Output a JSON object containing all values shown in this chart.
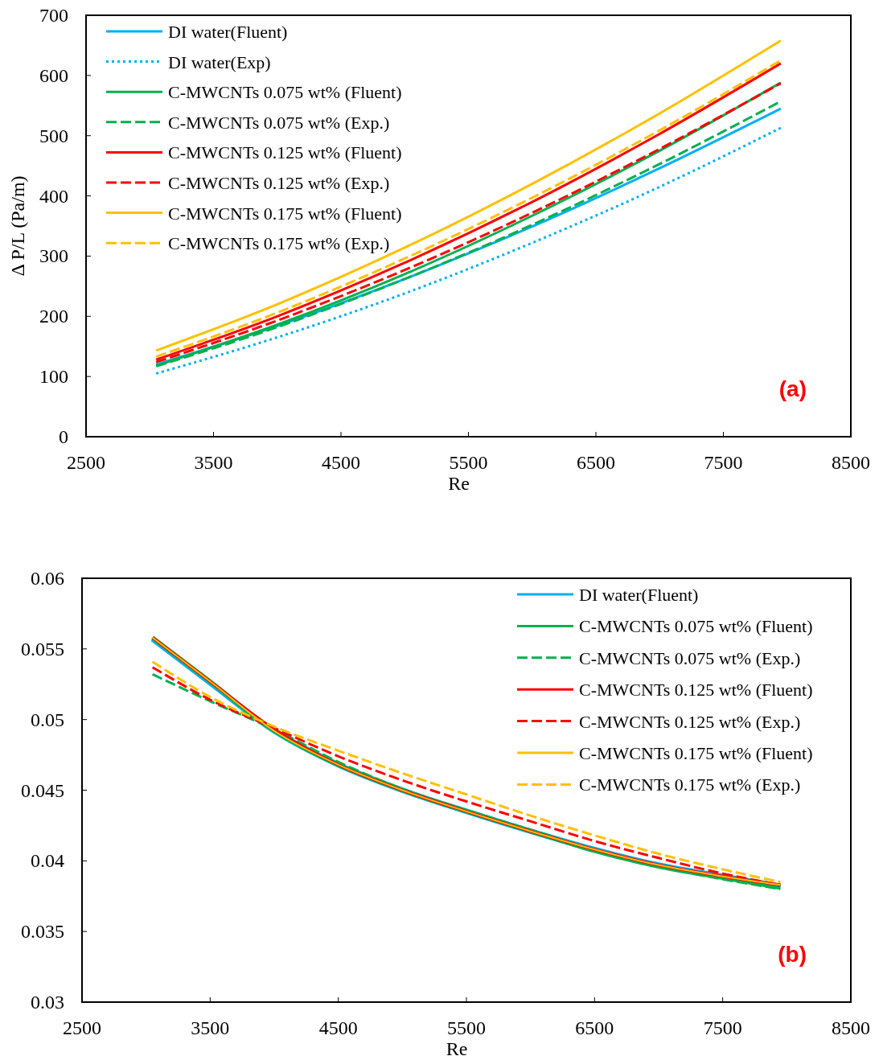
{
  "chart_data": [
    {
      "type": "line",
      "xlabel": "Re",
      "ylabel": "Δ P/L (Pa/m)",
      "annotations": [
        "(a)"
      ],
      "xlim": [
        2500,
        8500
      ],
      "xticks": [
        2500,
        3500,
        4500,
        5500,
        6500,
        7500,
        8500
      ],
      "ylim": [
        0,
        700
      ],
      "yticks": [
        0,
        100,
        200,
        300,
        400,
        500,
        600,
        700
      ],
      "grid": false,
      "legend": "top left",
      "marker": "none",
      "x": [
        3050,
        4000,
        5000,
        6000,
        7000,
        7950
      ],
      "series": [
        {
          "name": "DI water(Fluent)",
          "color": "#00b0f0",
          "line_style": "solid",
          "values": [
            120,
            184,
            262,
            349,
            446,
            545
          ]
        },
        {
          "name": "DI water(Exp)",
          "color": "#00b0f0",
          "line_style": "dotted",
          "values": [
            105,
            165,
            238,
            322,
            415,
            513
          ]
        },
        {
          "name": "C-MWCNTs 0.075 wt% (Fluent)",
          "color": "#00b050",
          "line_style": "solid",
          "values": [
            118,
            186,
            270,
            367,
            475,
            588
          ]
        },
        {
          "name": "C-MWCNTs 0.075 wt% (Exp.)",
          "color": "#00b050",
          "line_style": "dashed",
          "values": [
            117,
            182,
            262,
            352,
            453,
            557
          ]
        },
        {
          "name": "C-MWCNTs 0.125 wt% (Fluent)",
          "color": "#ff0000",
          "line_style": "solid",
          "values": [
            128,
            200,
            289,
            390,
            503,
            620
          ]
        },
        {
          "name": "C-MWCNTs 0.125 wt% (Exp.)",
          "color": "#ff0000",
          "line_style": "dashed",
          "values": [
            124,
            193,
            277,
            372,
            478,
            587
          ]
        },
        {
          "name": "C-MWCNTs 0.175 wt% (Fluent)",
          "color": "#ffc000",
          "line_style": "solid",
          "values": [
            143,
            220,
            314,
            420,
            537,
            658
          ]
        },
        {
          "name": "C-MWCNTs 0.175 wt% (Exp.)",
          "color": "#ffc000",
          "line_style": "dashed",
          "values": [
            133,
            206,
            296,
            397,
            509,
            625
          ]
        }
      ]
    },
    {
      "type": "line",
      "xlabel": "Re",
      "annotations": [
        "(b)"
      ],
      "xlim": [
        2500,
        8500
      ],
      "xticks": [
        2500,
        3500,
        4500,
        5500,
        6500,
        7500,
        8500
      ],
      "ylim": [
        0.03,
        0.06
      ],
      "yticks": [
        0.03,
        0.035,
        0.04,
        0.045,
        0.05,
        0.055,
        0.06
      ],
      "grid": false,
      "legend": "top right",
      "marker": "none",
      "x": [
        3050,
        3500,
        4000,
        4500,
        5000,
        5500,
        6000,
        6500,
        7000,
        7500,
        7950
      ],
      "series": [
        {
          "name": "DI water(Fluent)",
          "color": "#00b0f0",
          "line_style": "solid",
          "values": [
            0.0557,
            0.0526,
            0.0492,
            0.0468,
            0.045,
            0.0435,
            0.0421,
            0.0408,
            0.0397,
            0.0389,
            0.0382
          ]
        },
        {
          "name": "C-MWCNTs 0.075 wt% (Fluent)",
          "color": "#00b050",
          "line_style": "solid",
          "values": [
            0.0558,
            0.0527,
            0.0492,
            0.0468,
            0.045,
            0.0435,
            0.0421,
            0.0407,
            0.0396,
            0.0388,
            0.0381
          ]
        },
        {
          "name": "C-MWCNTs 0.075 wt% (Exp.)",
          "color": "#00b050",
          "line_style": "dashed",
          "values": [
            0.0532,
            0.0513,
            0.0493,
            0.047,
            0.0451,
            0.0436,
            0.0422,
            0.0408,
            0.0396,
            0.0387,
            0.038
          ]
        },
        {
          "name": "C-MWCNTs 0.125 wt% (Fluent)",
          "color": "#ff0000",
          "line_style": "solid",
          "values": [
            0.0558,
            0.0527,
            0.0493,
            0.0468,
            0.045,
            0.0435,
            0.0421,
            0.0408,
            0.0397,
            0.0389,
            0.0383
          ]
        },
        {
          "name": "C-MWCNTs 0.125 wt% (Exp.)",
          "color": "#ff0000",
          "line_style": "dashed",
          "values": [
            0.0537,
            0.0514,
            0.0494,
            0.0474,
            0.0457,
            0.0442,
            0.0428,
            0.0414,
            0.0402,
            0.0391,
            0.0383
          ]
        },
        {
          "name": "C-MWCNTs 0.175 wt% (Fluent)",
          "color": "#ffc000",
          "line_style": "solid",
          "values": [
            0.0558,
            0.0527,
            0.0492,
            0.0468,
            0.045,
            0.0435,
            0.0421,
            0.0408,
            0.0397,
            0.0389,
            0.0383
          ]
        },
        {
          "name": "C-MWCNTs 0.175 wt% (Exp.)",
          "color": "#ffc000",
          "line_style": "dashed",
          "values": [
            0.0541,
            0.0516,
            0.0495,
            0.0478,
            0.0462,
            0.0447,
            0.0432,
            0.0418,
            0.0405,
            0.0394,
            0.0385
          ]
        }
      ]
    }
  ]
}
